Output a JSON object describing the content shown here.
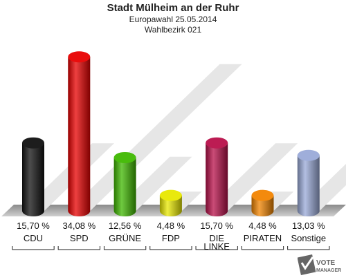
{
  "header": {
    "title": "Stadt Mülheim an der Ruhr",
    "subtitle": "Europawahl 25.05.2014",
    "district": "Wahlbezirk 021"
  },
  "chart_data": {
    "type": "bar",
    "categories": [
      "CDU",
      "SPD",
      "GRÜNE",
      "FDP",
      "DIE LINKE",
      "PIRATEN",
      "Sonstige"
    ],
    "values": [
      15.7,
      34.08,
      12.56,
      4.48,
      15.7,
      4.48,
      13.03
    ],
    "value_labels": [
      "15,70 %",
      "34,08 %",
      "12,56 %",
      "4,48 %",
      "15,70 %",
      "4,48 %",
      "13,03 %"
    ],
    "colors": [
      "#111111",
      "#e80000",
      "#3fb800",
      "#e8e800",
      "#b8104a",
      "#f28400",
      "#9aaad8"
    ],
    "ylim": [
      0,
      35
    ],
    "grid": false
  },
  "logo": {
    "line1": "VOTE",
    "line2": "MANAGER"
  }
}
